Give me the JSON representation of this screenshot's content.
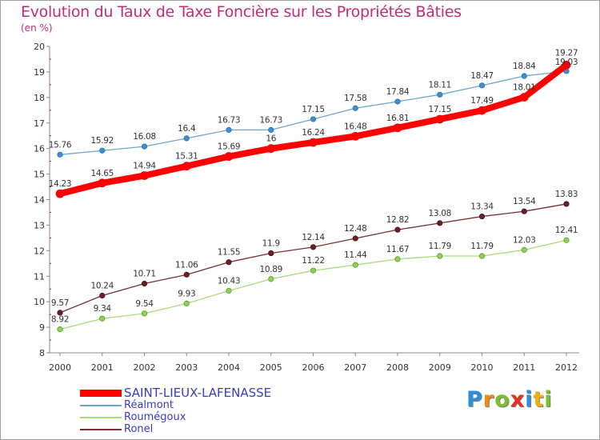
{
  "header": {
    "title": "Evolution du Taux de Taxe Foncière sur les Propriétés Bâties",
    "subtitle": "(en %)"
  },
  "chart_data": {
    "type": "line",
    "title": "Evolution du Taux de Taxe Foncière sur les Propriétés Bâties",
    "ylabel": "(en %)",
    "xlabel": "",
    "ylim": [
      8,
      20
    ],
    "yticks": [
      8,
      9,
      10,
      11,
      12,
      13,
      14,
      15,
      16,
      17,
      18,
      19,
      20
    ],
    "categories": [
      "2000",
      "2001",
      "2002",
      "2003",
      "2004",
      "2005",
      "2006",
      "2007",
      "2008",
      "2009",
      "2010",
      "2011",
      "2012"
    ],
    "grid": "none",
    "series": [
      {
        "name": "SAINT-LIEUX-LAFENASSE",
        "color": "#ff0000",
        "values": [
          14.23,
          14.65,
          14.94,
          15.31,
          15.69,
          16,
          16.24,
          16.48,
          16.81,
          17.15,
          17.49,
          18.01,
          19.27
        ],
        "labels": [
          "14.23",
          "14.65",
          "14.94",
          "15.31",
          "15.69",
          "16",
          "16.24",
          "16.48",
          "16.81",
          "17.15",
          "17.49",
          "18.01",
          "19.27"
        ]
      },
      {
        "name": "Réalmont",
        "color": "#6ea5d0",
        "values": [
          15.76,
          15.92,
          16.08,
          16.4,
          16.73,
          16.73,
          17.15,
          17.58,
          17.84,
          18.11,
          18.47,
          18.84,
          19.03
        ],
        "labels": [
          "15.76",
          "15.92",
          "16.08",
          "16.4",
          "16.73",
          "16.73",
          "17.15",
          "17.58",
          "17.84",
          "18.11",
          "18.47",
          "18.84",
          "19.03"
        ]
      },
      {
        "name": "Roumégoux",
        "color": "#a8dc7a",
        "values": [
          8.92,
          9.34,
          9.54,
          9.93,
          10.43,
          10.89,
          11.22,
          11.44,
          11.67,
          11.79,
          11.79,
          12.03,
          12.41
        ],
        "labels": [
          "8.92",
          "9.34",
          "9.54",
          "9.93",
          "10.43",
          "10.89",
          "11.22",
          "11.44",
          "11.67",
          "11.79",
          "11.79",
          "12.03",
          "12.41"
        ]
      },
      {
        "name": "Ronel",
        "color": "#7a2e35",
        "values": [
          9.57,
          10.24,
          10.71,
          11.06,
          11.55,
          11.9,
          12.14,
          12.48,
          12.82,
          13.08,
          13.34,
          13.54,
          13.83
        ],
        "labels": [
          "9.57",
          "10.24",
          "10.71",
          "11.06",
          "11.55",
          "11.9",
          "12.14",
          "12.48",
          "12.82",
          "13.08",
          "13.34",
          "13.54",
          "13.83"
        ]
      }
    ]
  },
  "logo": {
    "text": [
      "P",
      "r",
      "o",
      "x",
      "i",
      "t",
      "i"
    ],
    "colors": [
      "#2a8fd8",
      "#f08a10",
      "#7ac030",
      "#e83020",
      "#2a8fd8",
      "#f0b010",
      "#7ac030"
    ]
  }
}
